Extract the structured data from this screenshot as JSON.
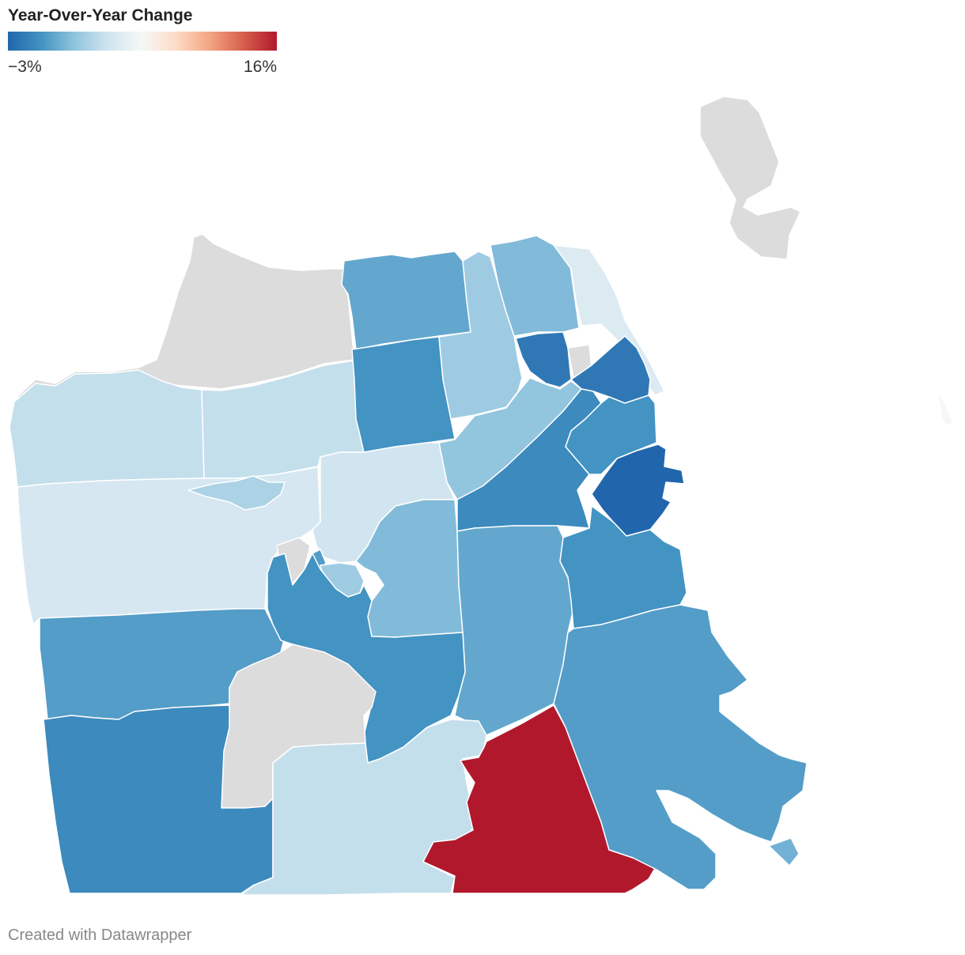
{
  "legend": {
    "title": "Year-Over-Year Change",
    "min_label": "−3%",
    "max_label": "16%",
    "min_value": -3,
    "max_value": 16,
    "scale_colors": [
      "#2166ac",
      "#4393c3",
      "#92c5de",
      "#d1e5f0",
      "#f7f7f7",
      "#fddbc7",
      "#f4a582",
      "#d6604d",
      "#b2182b"
    ]
  },
  "no_data_color": "#dcdcdc",
  "footer": {
    "credit": "Created with Datawrapper"
  }
}
